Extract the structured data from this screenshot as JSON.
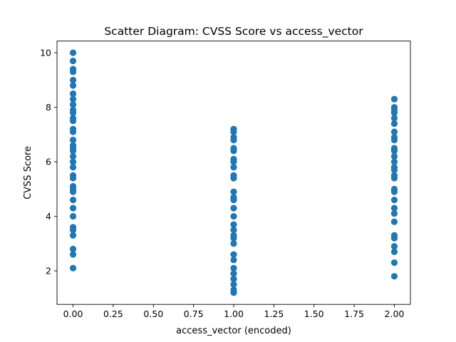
{
  "chart_data": {
    "type": "scatter",
    "title": "Scatter Diagram: CVSS Score vs access_vector",
    "xlabel": "access_vector (encoded)",
    "ylabel": "CVSS Score",
    "xlim": [
      -0.1,
      2.1
    ],
    "ylim": [
      0.77,
      10.43
    ],
    "x_ticks": [
      "0.00",
      "0.25",
      "0.50",
      "0.75",
      "1.00",
      "1.25",
      "1.50",
      "1.75",
      "2.00"
    ],
    "y_ticks": [
      "2",
      "4",
      "6",
      "8",
      "10"
    ],
    "grid": false,
    "marker_color": "#1f77b4",
    "series": [
      {
        "x": 0,
        "y": [
          2.1,
          2.6,
          2.8,
          3.3,
          3.5,
          3.6,
          4.0,
          4.3,
          4.6,
          4.9,
          5.0,
          5.1,
          5.4,
          5.5,
          5.8,
          6.0,
          6.2,
          6.4,
          6.5,
          6.6,
          6.8,
          7.1,
          7.2,
          7.5,
          7.6,
          7.8,
          7.9,
          8.1,
          8.3,
          8.5,
          8.8,
          9.0,
          9.3,
          9.4,
          9.7,
          10.0
        ]
      },
      {
        "x": 1,
        "y": [
          1.2,
          1.3,
          1.5,
          1.7,
          1.9,
          2.1,
          2.4,
          2.6,
          3.0,
          3.2,
          3.3,
          3.5,
          3.7,
          4.0,
          4.3,
          4.6,
          4.7,
          4.9,
          5.4,
          5.5,
          5.8,
          6.0,
          6.1,
          6.4,
          6.5,
          6.8,
          6.9,
          7.1,
          7.2
        ]
      },
      {
        "x": 2,
        "y": [
          1.8,
          2.3,
          2.7,
          2.9,
          3.2,
          3.3,
          3.8,
          4.1,
          4.3,
          4.6,
          4.9,
          5.0,
          5.4,
          5.5,
          5.7,
          5.8,
          6.0,
          6.2,
          6.4,
          6.5,
          6.8,
          6.9,
          7.1,
          7.4,
          7.6,
          7.8,
          7.9,
          8.0,
          8.3
        ]
      }
    ]
  }
}
